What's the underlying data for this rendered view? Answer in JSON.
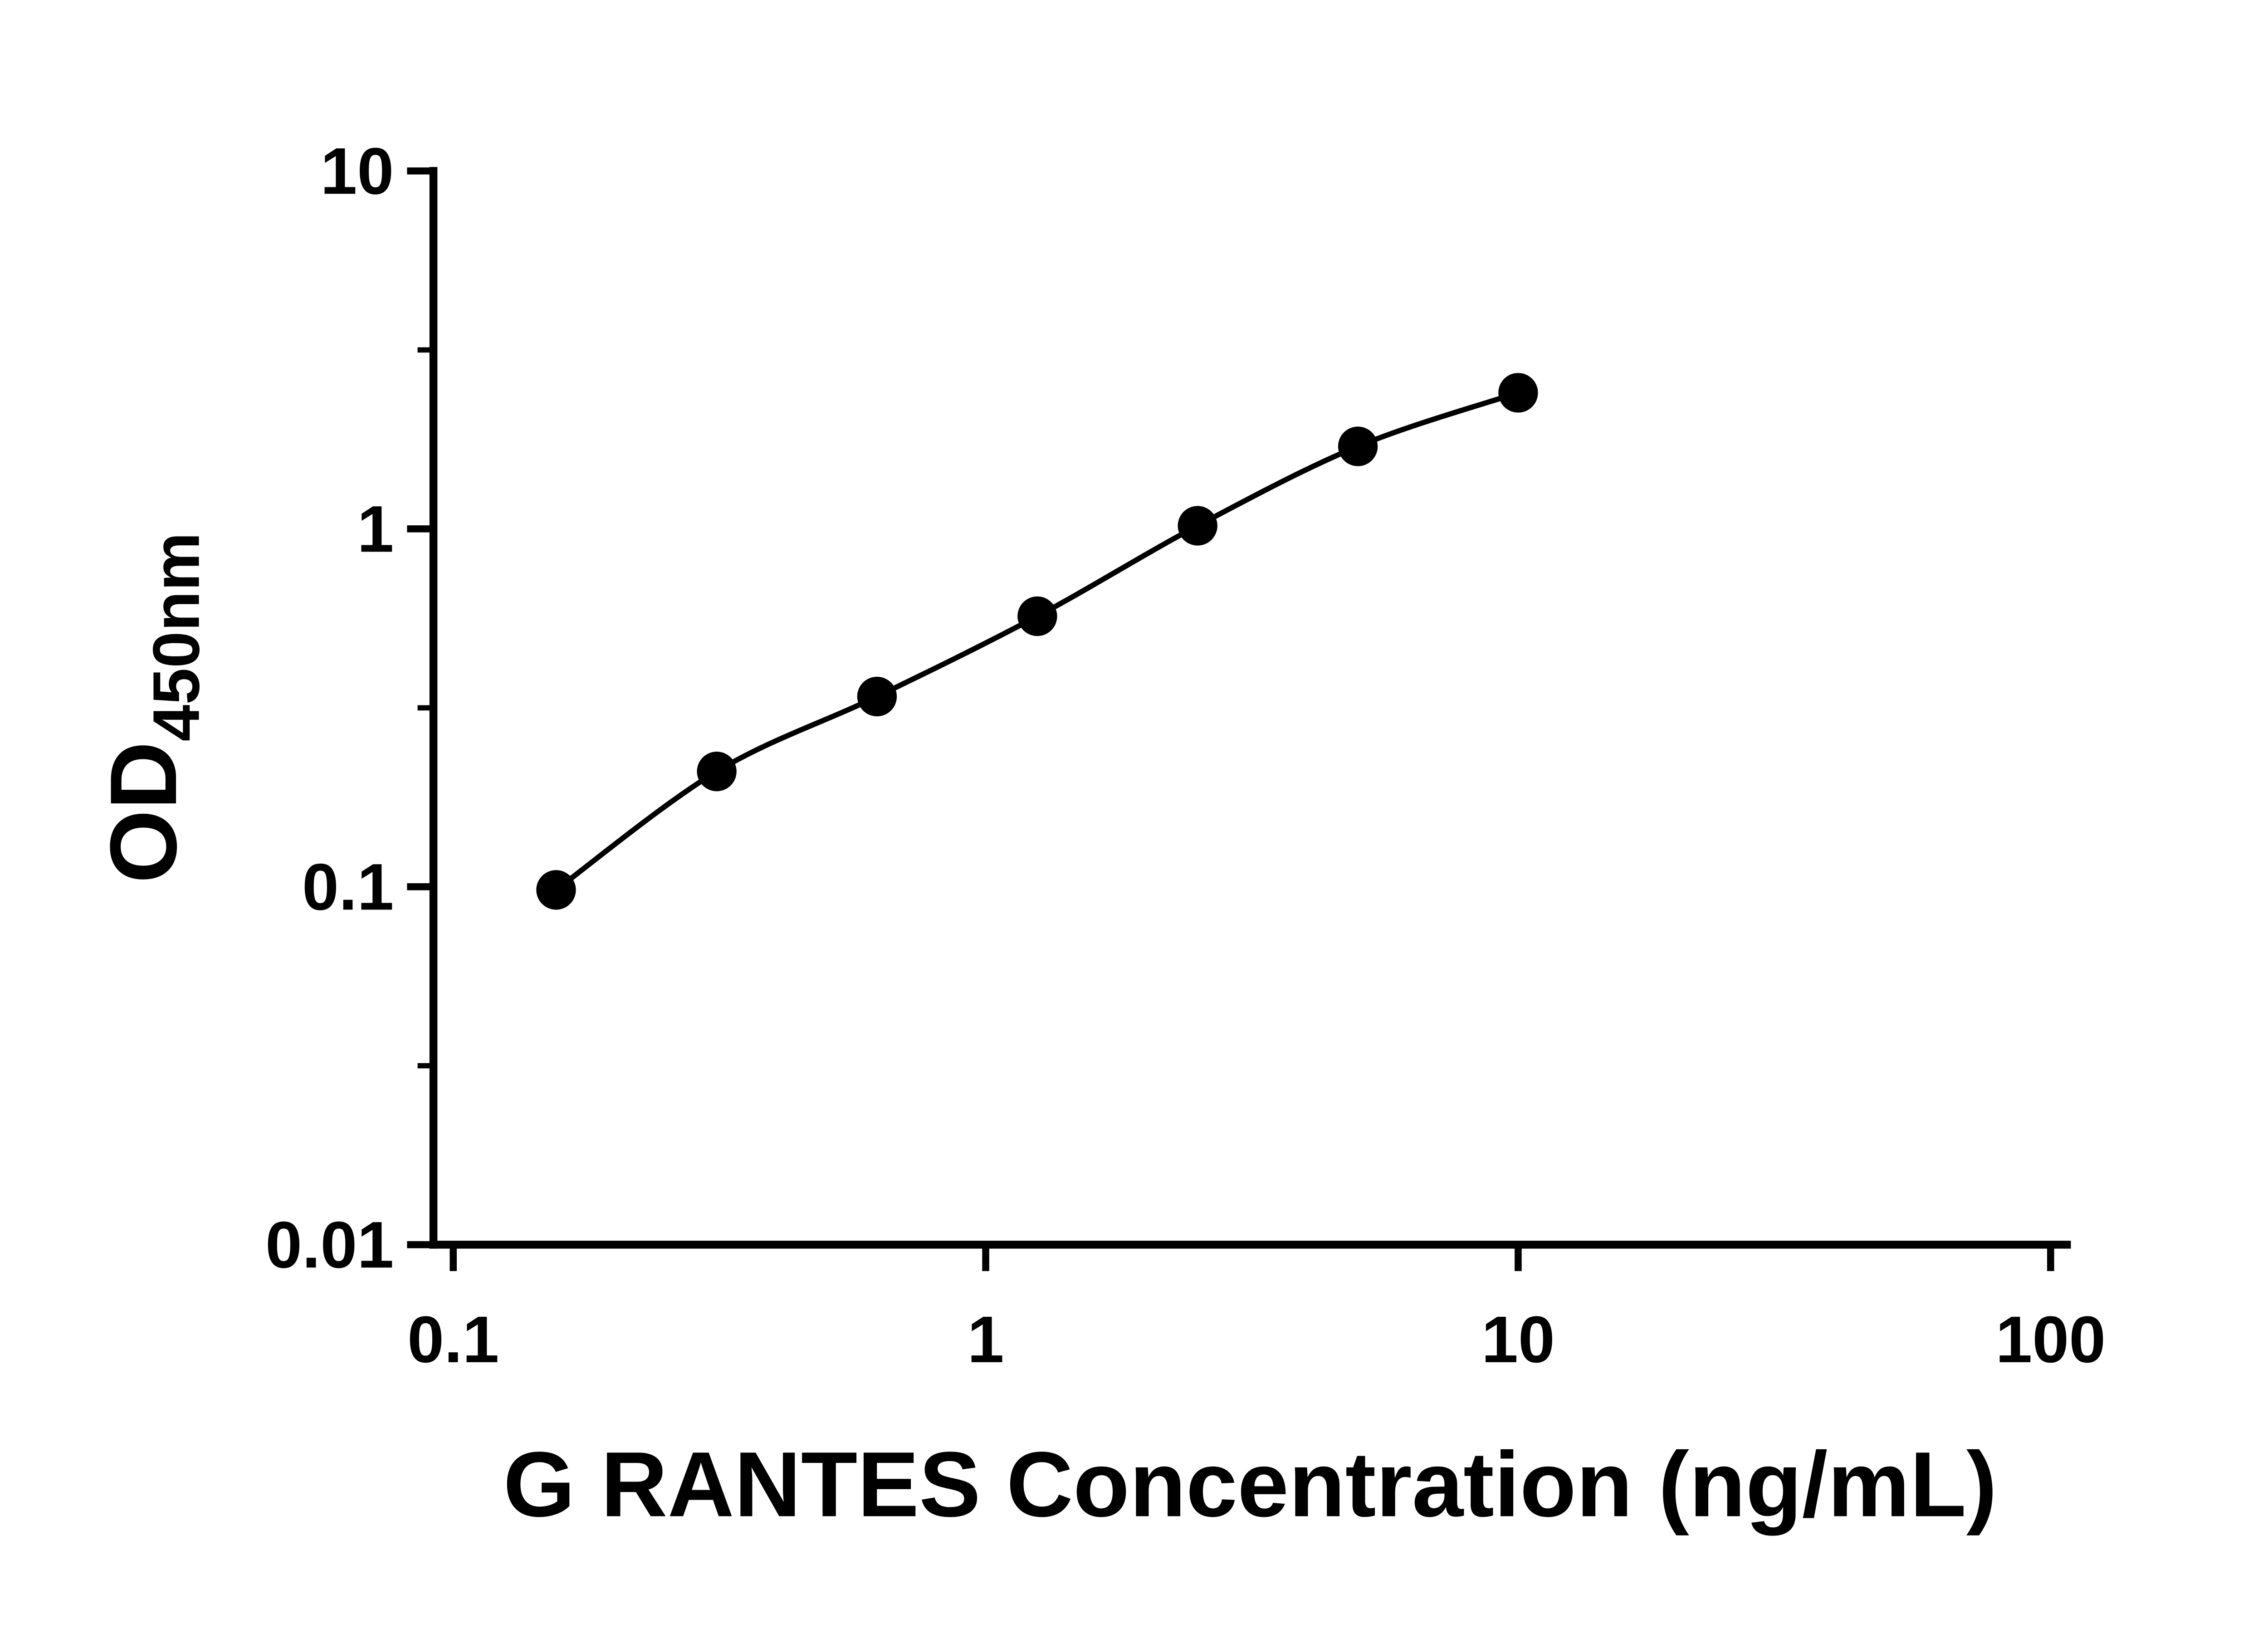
{
  "page": {
    "background": "#ffffff"
  },
  "chart_data": {
    "type": "scatter",
    "subtype": "elisa-standard-curve-with-fit-line",
    "title": "",
    "xlabel": "G RANTES Concentration (ng/mL)",
    "ylabel_main": "OD",
    "ylabel_sub": "450nm",
    "x_scale": "log10",
    "y_scale": "log10",
    "xlim": [
      0.1,
      100
    ],
    "ylim": [
      0.01,
      10
    ],
    "x_ticks": [
      0.1,
      1,
      10,
      100
    ],
    "x_tick_labels": [
      "0.1",
      "1",
      "10",
      "100"
    ],
    "y_ticks": [
      10,
      1,
      0.1,
      0.01
    ],
    "y_tick_labels": [
      "10",
      "1",
      "0.1",
      "0.01"
    ],
    "y_minor_ticks": [
      3.162,
      0.3162,
      0.03162
    ],
    "grid": false,
    "legend": false,
    "axis_color": "#000000",
    "line_color": "#000000",
    "marker_color": "#000000",
    "marker": "filled-circle",
    "series": [
      {
        "name": "standard-curve",
        "marker": "filled-circle",
        "color": "#000000",
        "points": [
          {
            "x": 0.156,
            "y": 0.098
          },
          {
            "x": 0.3125,
            "y": 0.21
          },
          {
            "x": 0.625,
            "y": 0.34
          },
          {
            "x": 1.25,
            "y": 0.57
          },
          {
            "x": 2.5,
            "y": 1.02
          },
          {
            "x": 5,
            "y": 1.7
          },
          {
            "x": 10,
            "y": 2.4
          }
        ]
      }
    ]
  }
}
